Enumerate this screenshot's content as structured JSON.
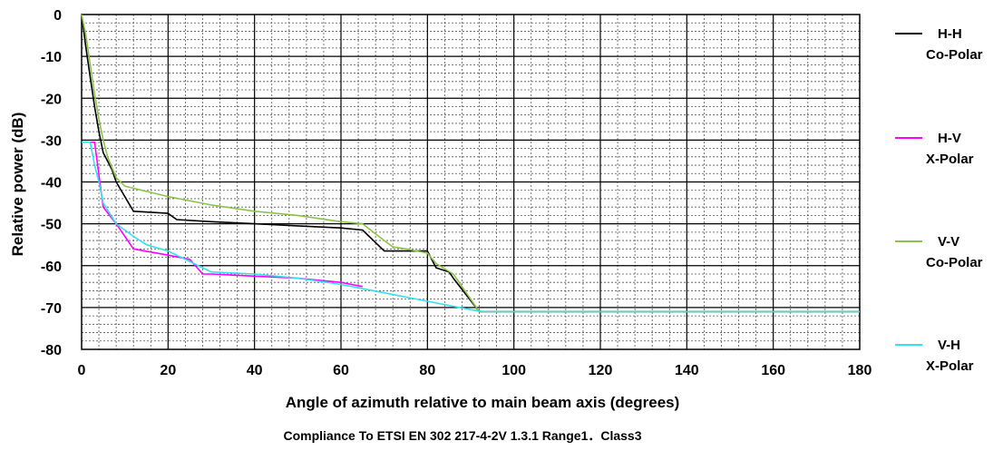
{
  "chart_data": {
    "type": "line",
    "title": "",
    "xlabel": "Angle of azimuth relative to main beam axis (degrees)",
    "ylabel": "Relative power (dB)",
    "caption": "Compliance To ETSI EN 302 217-4-2V 1.3.1 Range1．Class3",
    "xlim": [
      0,
      180
    ],
    "ylim": [
      -80,
      0
    ],
    "x_ticks": [
      "0",
      "20",
      "40",
      "60",
      "80",
      "100",
      "120",
      "140",
      "160",
      "180"
    ],
    "y_ticks": [
      "0",
      "-10",
      "-20",
      "-30",
      "-40",
      "-50",
      "-60",
      "-70",
      "-80"
    ],
    "grid": true,
    "legend_position": "right",
    "series": [
      {
        "line1": "H-H",
        "line2": "Co-Polar",
        "color": "#000000",
        "points": [
          [
            0,
            0
          ],
          [
            1,
            -8
          ],
          [
            2,
            -15
          ],
          [
            3,
            -22
          ],
          [
            4,
            -28
          ],
          [
            5,
            -33
          ],
          [
            7,
            -37
          ],
          [
            8,
            -40
          ],
          [
            12,
            -47
          ],
          [
            20,
            -47.5
          ],
          [
            22,
            -49
          ],
          [
            30,
            -49.5
          ],
          [
            40,
            -50
          ],
          [
            50,
            -50.5
          ],
          [
            60,
            -51
          ],
          [
            65,
            -51.5
          ],
          [
            70,
            -56.5
          ],
          [
            75,
            -56.5
          ],
          [
            80,
            -56.5
          ],
          [
            82,
            -60.5
          ],
          [
            85,
            -61.5
          ],
          [
            86,
            -63
          ],
          [
            92,
            -71
          ],
          [
            180,
            -71
          ]
        ]
      },
      {
        "line1": "H-V",
        "line2": "X-Polar",
        "color": "#ff00ff",
        "points": [
          [
            0,
            -30.5
          ],
          [
            3,
            -30.5
          ],
          [
            5,
            -46
          ],
          [
            8,
            -50
          ],
          [
            12,
            -56
          ],
          [
            20,
            -57.5
          ],
          [
            25,
            -58.5
          ],
          [
            28,
            -62
          ],
          [
            30,
            -62
          ],
          [
            40,
            -62.5
          ],
          [
            50,
            -63
          ],
          [
            55,
            -63.5
          ],
          [
            60,
            -64
          ],
          [
            65,
            -65
          ]
        ]
      },
      {
        "line1": "V-V",
        "line2": "Co-Polar",
        "color": "#8bc34a",
        "points": [
          [
            0,
            0
          ],
          [
            1,
            -5
          ],
          [
            2,
            -12
          ],
          [
            3,
            -19
          ],
          [
            4,
            -25
          ],
          [
            5,
            -30
          ],
          [
            6,
            -34
          ],
          [
            8,
            -39
          ],
          [
            10,
            -41
          ],
          [
            20,
            -43.5
          ],
          [
            30,
            -45.5
          ],
          [
            40,
            -47
          ],
          [
            50,
            -48
          ],
          [
            60,
            -49.5
          ],
          [
            65,
            -50
          ],
          [
            70,
            -54
          ],
          [
            72,
            -55.5
          ],
          [
            75,
            -56
          ],
          [
            80,
            -57
          ],
          [
            82,
            -59.5
          ],
          [
            86,
            -62
          ],
          [
            92,
            -71
          ],
          [
            180,
            -71
          ]
        ]
      },
      {
        "line1": "V-H",
        "line2": "X-Polar",
        "color": "#33e0f0",
        "points": [
          [
            0,
            -30.5
          ],
          [
            2,
            -30.5
          ],
          [
            3,
            -36
          ],
          [
            4,
            -40
          ],
          [
            5,
            -45
          ],
          [
            8,
            -50
          ],
          [
            12,
            -53
          ],
          [
            15,
            -55
          ],
          [
            20,
            -56.5
          ],
          [
            25,
            -59
          ],
          [
            28,
            -60.5
          ],
          [
            30,
            -61.5
          ],
          [
            40,
            -62
          ],
          [
            50,
            -63
          ],
          [
            60,
            -64.5
          ],
          [
            70,
            -66.5
          ],
          [
            80,
            -68.5
          ],
          [
            90,
            -70.5
          ],
          [
            93,
            -71
          ],
          [
            180,
            -71
          ]
        ]
      }
    ]
  }
}
